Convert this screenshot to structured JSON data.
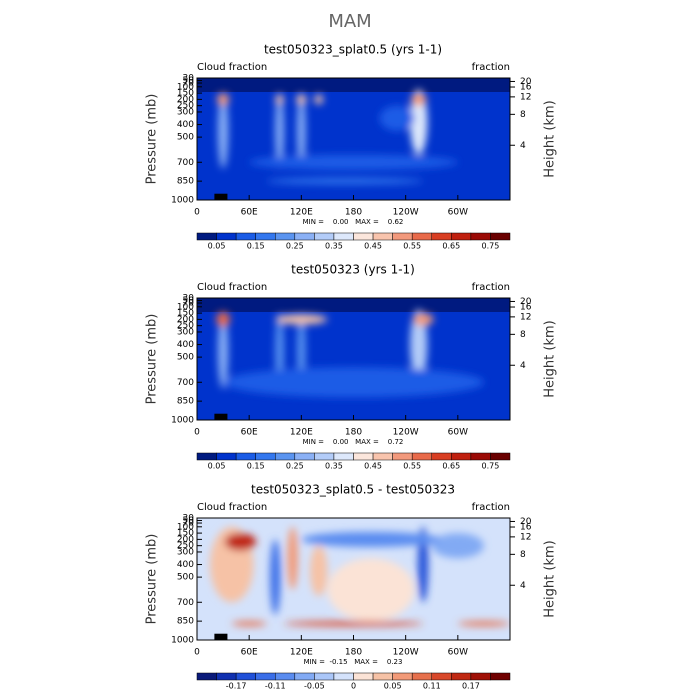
{
  "title": "MAM",
  "chart_data": [
    {
      "type": "contour",
      "title": "test050323_splat0.5 (yrs 1-1)",
      "left_label": "Cloud fraction",
      "right_label": "fraction",
      "ylabel": "Pressure (mb)",
      "y2label": "Height (km)",
      "xlim": [
        0,
        360
      ],
      "xticks": [
        0,
        {
          "value": 60,
          "label": "60E"
        },
        {
          "value": 120,
          "label": "120E"
        },
        180,
        {
          "value": 240,
          "label": "120W"
        },
        {
          "value": 300,
          "label": "60W"
        }
      ],
      "ylim": [
        1000,
        30
      ],
      "yticks": [
        1000,
        850,
        700,
        500,
        400,
        300,
        250,
        200,
        150,
        100,
        70,
        50,
        30
      ],
      "y2ticks": [
        4,
        8,
        12,
        16,
        20
      ],
      "stats": "MIN =    0.00   MAX =    0.62",
      "colorbar": {
        "colors": [
          "#001a80",
          "#0033cc",
          "#1a5ce6",
          "#3377ee",
          "#5a94f0",
          "#8ab0f5",
          "#b3ccf8",
          "#dde8fb",
          "#fbe6dc",
          "#f8c4ad",
          "#f2997c",
          "#e86a4a",
          "#d83e22",
          "#c0200f",
          "#9b0a05",
          "#6a0000"
        ],
        "ticks": [
          0.05,
          0.15,
          0.25,
          0.35,
          0.45,
          0.55,
          0.65,
          0.75
        ]
      }
    },
    {
      "type": "contour",
      "title": "test050323 (yrs 1-1)",
      "left_label": "Cloud fraction",
      "right_label": "fraction",
      "ylabel": "Pressure (mb)",
      "y2label": "Height (km)",
      "xlim": [
        0,
        360
      ],
      "xticks": [
        0,
        {
          "value": 60,
          "label": "60E"
        },
        {
          "value": 120,
          "label": "120E"
        },
        180,
        {
          "value": 240,
          "label": "120W"
        },
        {
          "value": 300,
          "label": "60W"
        }
      ],
      "ylim": [
        1000,
        30
      ],
      "yticks": [
        1000,
        850,
        700,
        500,
        400,
        300,
        250,
        200,
        150,
        100,
        70,
        50,
        30
      ],
      "y2ticks": [
        4,
        8,
        12,
        16,
        20
      ],
      "stats": "MIN =    0.00   MAX =    0.72",
      "colorbar": {
        "colors": [
          "#001a80",
          "#0033cc",
          "#1a5ce6",
          "#3377ee",
          "#5a94f0",
          "#8ab0f5",
          "#b3ccf8",
          "#dde8fb",
          "#fbe6dc",
          "#f8c4ad",
          "#f2997c",
          "#e86a4a",
          "#d83e22",
          "#c0200f",
          "#9b0a05",
          "#6a0000"
        ],
        "ticks": [
          0.05,
          0.15,
          0.25,
          0.35,
          0.45,
          0.55,
          0.65,
          0.75
        ]
      }
    },
    {
      "type": "contour",
      "title": "test050323_splat0.5 - test050323",
      "left_label": "Cloud fraction",
      "right_label": "fraction",
      "ylabel": "Pressure (mb)",
      "y2label": "Height (km)",
      "xlim": [
        0,
        360
      ],
      "xticks": [
        0,
        {
          "value": 60,
          "label": "60E"
        },
        {
          "value": 120,
          "label": "120E"
        },
        180,
        {
          "value": 240,
          "label": "120W"
        },
        {
          "value": 300,
          "label": "60W"
        }
      ],
      "ylim": [
        1000,
        30
      ],
      "yticks": [
        1000,
        850,
        700,
        500,
        400,
        300,
        250,
        200,
        150,
        100,
        70,
        50,
        30
      ],
      "y2ticks": [
        4,
        8,
        12,
        16,
        20
      ],
      "stats": "MIN =  -0.15   MAX =    0.23",
      "colorbar": {
        "colors": [
          "#0a1a7a",
          "#1030b0",
          "#2050d8",
          "#3a6ee8",
          "#5a8cf0",
          "#82aaf4",
          "#aac6f8",
          "#d4e2fb",
          "#fbe3d6",
          "#f6c2a6",
          "#f29a78",
          "#e6704c",
          "#d8482a",
          "#c02812",
          "#a01006",
          "#700000"
        ],
        "ticks": [
          -0.17,
          -0.11,
          -0.05,
          0,
          0.05,
          0.11,
          0.17
        ]
      }
    }
  ]
}
